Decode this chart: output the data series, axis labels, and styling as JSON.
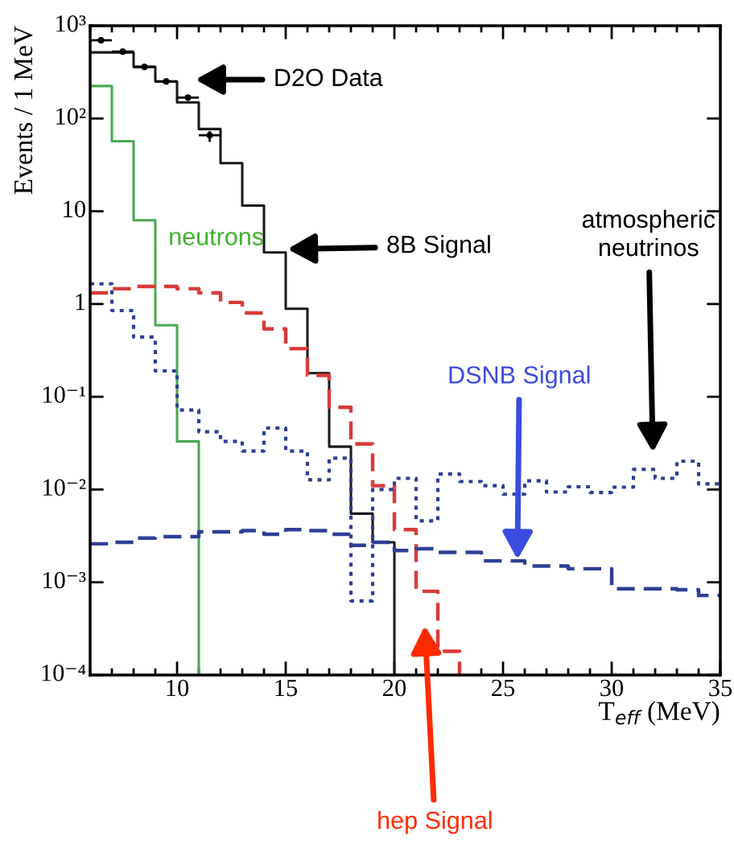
{
  "chart_data": {
    "type": "step",
    "xlabel": "T$_{eff}$ (MeV)",
    "ylabel": "Events / 1 MeV",
    "log": "y",
    "grid": false,
    "legend": false,
    "xlim": [
      6,
      35
    ],
    "xticks": [
      10,
      15,
      20,
      25,
      30,
      35
    ],
    "ylim": [
      0.0001,
      1000
    ],
    "yticks": [
      {
        "value": 0.0001,
        "label": "10⁻⁴"
      },
      {
        "value": 0.001,
        "label": "10⁻³"
      },
      {
        "value": 0.01,
        "label": "10⁻²"
      },
      {
        "value": 0.1,
        "label": "10⁻¹"
      },
      1,
      10,
      {
        "value": 100,
        "label": "10²"
      },
      {
        "value": 1000,
        "label": "10³"
      }
    ],
    "series": [
      {
        "color": "#1a1a1a",
        "line_style": "solid",
        "x": [
          6,
          7,
          8,
          9,
          10,
          11,
          12,
          13,
          14,
          15,
          16,
          17,
          18,
          19,
          20
        ],
        "values": [
          516,
          516,
          360,
          251,
          149,
          77,
          33,
          11.5,
          3.6,
          0.89,
          0.18,
          0.029,
          0.0055,
          0.0027,
          0.0001
        ]
      },
      {
        "color": "#4aa853",
        "line_style": "solid",
        "x": [
          6,
          7,
          8,
          9,
          10,
          11
        ],
        "values": [
          224,
          57,
          8.0,
          0.59,
          0.033,
          0.0001
        ]
      },
      {
        "color": "#d93a3a",
        "line_style": "dashed",
        "x": [
          6,
          7,
          8,
          9,
          10,
          11,
          12,
          13,
          14,
          15,
          16,
          17,
          18,
          19,
          20,
          21,
          22,
          23
        ],
        "values": [
          1.32,
          1.46,
          1.55,
          1.55,
          1.46,
          1.32,
          1.04,
          0.8,
          0.54,
          0.33,
          0.17,
          0.077,
          0.031,
          0.011,
          0.0037,
          0.0008,
          0.00018,
          0.0001
        ]
      },
      {
        "color": "#2e3f95",
        "line_style": "dotted",
        "x": [
          6,
          7,
          8,
          9,
          10,
          11,
          12,
          13,
          14,
          15,
          16,
          17,
          18,
          19,
          20,
          21,
          22,
          23,
          24,
          25,
          26,
          27,
          28,
          29,
          30,
          31,
          32,
          33,
          34,
          35
        ],
        "values": [
          1.65,
          0.85,
          0.44,
          0.19,
          0.072,
          0.042,
          0.033,
          0.026,
          0.046,
          0.026,
          0.0127,
          0.0218,
          0.00063,
          0.01,
          0.0132,
          0.0046,
          0.0147,
          0.0122,
          0.011,
          0.0089,
          0.0124,
          0.0094,
          0.0107,
          0.0093,
          0.0106,
          0.0165,
          0.0132,
          0.0202,
          0.0115,
          0.0115
        ]
      },
      {
        "color": "#2e3f95",
        "line_style": "dashed",
        "x": [
          6,
          7,
          8,
          9,
          10,
          11,
          12,
          13,
          14,
          15,
          16,
          17,
          18,
          19,
          20,
          21,
          22,
          23,
          24,
          25,
          26,
          27,
          28,
          29,
          30,
          31,
          32,
          33,
          34,
          35
        ],
        "values": [
          0.0026,
          0.0027,
          0.003,
          0.0031,
          0.0031,
          0.0035,
          0.0035,
          0.0036,
          0.0033,
          0.0037,
          0.0036,
          0.0033,
          0.0025,
          0.0027,
          0.0022,
          0.0023,
          0.0021,
          0.0021,
          0.0017,
          0.0017,
          0.0015,
          0.0015,
          0.0014,
          0.0014,
          0.00085,
          0.00085,
          0.00085,
          0.00083,
          0.00072,
          0.00072
        ]
      },
      {
        "type": "scatter",
        "color": "#000000",
        "marker": "circle",
        "x": [
          6.5,
          7.5,
          8.5,
          9.5,
          10.5,
          11.5
        ],
        "values": [
          697,
          526,
          360,
          251,
          168,
          66
        ],
        "errors": [
          null,
          null,
          null,
          null,
          null,
          [
            56,
            73
          ]
        ],
        "xerrors": [
          0.5,
          0.5,
          0.5,
          0.5,
          0.5,
          0.5
        ]
      }
    ],
    "annotations": [
      "8B Signal",
      "neutrons",
      "hep Signal",
      "atmospheric\nneutrinos",
      "DSNB Signal",
      "D2O Data"
    ]
  }
}
